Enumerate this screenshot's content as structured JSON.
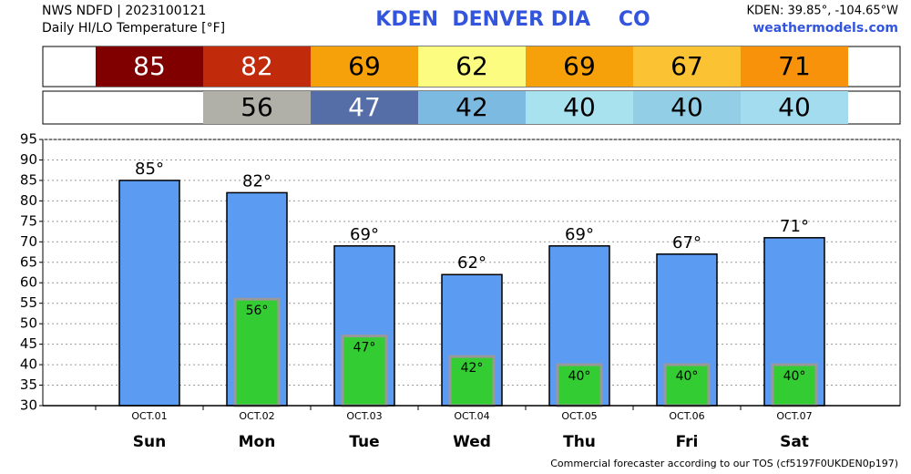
{
  "chart_data": {
    "type": "bar",
    "source": "NWS NDFD | 2023100121",
    "subtitle": "Daily HI/LO Temperature [°F]",
    "title": "KDEN  DENVER DIA    CO",
    "location": "KDEN: 39.85°, -104.65°W",
    "site": "weathermodels.com",
    "footer": "Commercial forecaster according to our TOS (cf5197F0UKDEN0p197)",
    "categories": [
      "Sun",
      "Mon",
      "Tue",
      "Wed",
      "Thu",
      "Fri",
      "Sat"
    ],
    "dates": [
      "OCT.01",
      "OCT.02",
      "OCT.03",
      "OCT.04",
      "OCT.05",
      "OCT.06",
      "OCT.07"
    ],
    "series": [
      {
        "color": "#5b9cf2",
        "values": [
          85,
          82,
          69,
          62,
          69,
          67,
          71
        ],
        "value_labels": [
          "85°",
          "82°",
          "69°",
          "62°",
          "69°",
          "67°",
          "71°"
        ],
        "strip_colors": [
          "#800000",
          "#c22a0c",
          "#f7a10a",
          "#fcfc80",
          "#f7a10a",
          "#fbc234",
          "#f8920a"
        ]
      },
      {
        "color": "#33cc33",
        "values": [
          null,
          56,
          47,
          42,
          40,
          40,
          40
        ],
        "value_labels": [
          null,
          "56°",
          "47°",
          "42°",
          "40°",
          "40°",
          "40°"
        ],
        "strip_colors": [
          null,
          "#b0afa8",
          "#566ea8",
          "#7cbae2",
          "#a8e2ee",
          "#92cee6",
          "#a2dcee"
        ]
      }
    ],
    "ylim": [
      30,
      95
    ],
    "yticks": [
      30,
      35,
      40,
      45,
      50,
      55,
      60,
      65,
      70,
      75,
      80,
      85,
      90,
      95
    ],
    "grid": true
  }
}
